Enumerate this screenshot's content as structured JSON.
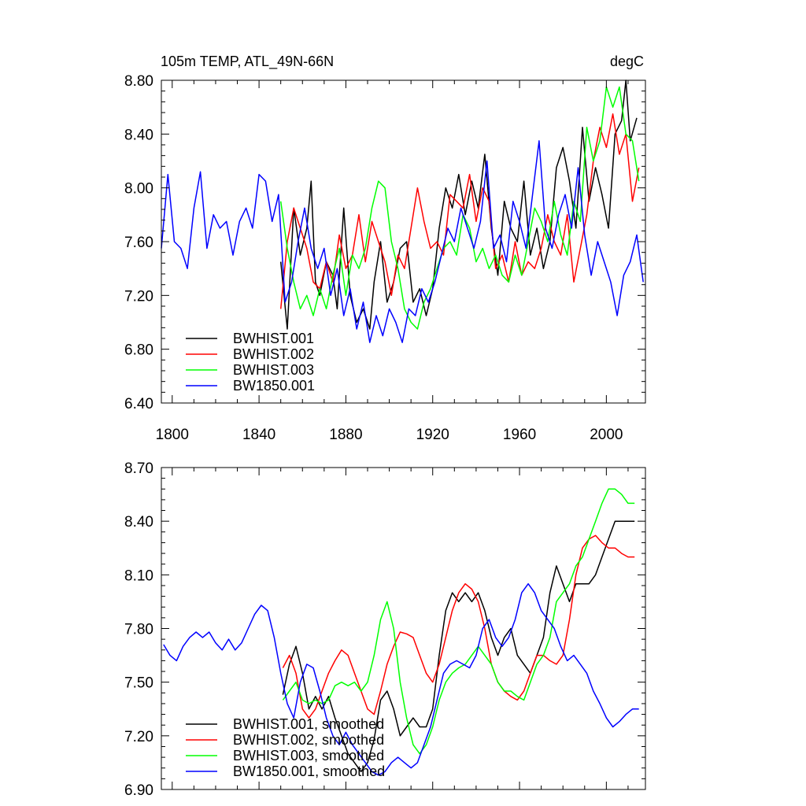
{
  "chart_data": [
    {
      "type": "line",
      "title": "105m TEMP, ATL_49N-66N",
      "units": "degC",
      "xlim": [
        1795,
        2018
      ],
      "ylim": [
        6.4,
        8.8
      ],
      "x_ticks": [
        1800,
        1840,
        1880,
        1920,
        1960,
        2000
      ],
      "y_ticks": [
        6.4,
        6.8,
        7.2,
        7.6,
        8.0,
        8.4,
        8.8
      ],
      "y_tick_labels": [
        "6.40",
        "6.80",
        "7.20",
        "7.60",
        "8.00",
        "8.40",
        "8.80"
      ],
      "x_tick_labels": [
        "1800",
        "1840",
        "1880",
        "1920",
        "1960",
        "2000"
      ],
      "legend_position": "bottom-left",
      "series": [
        {
          "name": "BWHIST.001",
          "color": "#000000",
          "x": [
            1850,
            1853,
            1856,
            1859,
            1862,
            1864,
            1866,
            1868,
            1871,
            1874,
            1876,
            1879,
            1882,
            1885,
            1888,
            1891,
            1893,
            1896,
            1899,
            1902,
            1905,
            1908,
            1911,
            1914,
            1917,
            1920,
            1923,
            1926,
            1929,
            1932,
            1935,
            1938,
            1941,
            1944,
            1947,
            1950,
            1953,
            1956,
            1959,
            1962,
            1965,
            1968,
            1971,
            1974,
            1977,
            1980,
            1983,
            1986,
            1989,
            1992,
            1995,
            1998,
            2001,
            2004,
            2007,
            2009,
            2011,
            2014
          ],
          "values": [
            7.45,
            6.95,
            7.85,
            7.5,
            7.7,
            8.05,
            7.3,
            7.2,
            7.45,
            7.35,
            7.1,
            7.85,
            7.2,
            7.0,
            7.1,
            6.95,
            7.3,
            7.6,
            7.15,
            7.3,
            7.55,
            7.6,
            7.15,
            7.25,
            7.05,
            7.25,
            7.7,
            8.0,
            7.85,
            8.1,
            7.8,
            8.05,
            7.85,
            8.25,
            7.7,
            7.35,
            7.9,
            7.7,
            7.6,
            8.05,
            7.5,
            7.7,
            7.4,
            7.6,
            8.15,
            8.3,
            8.05,
            7.7,
            8.45,
            7.9,
            8.15,
            7.95,
            7.7,
            8.4,
            8.5,
            8.8,
            8.35,
            8.52
          ]
        },
        {
          "name": "BWHIST.002",
          "color": "#ff0000",
          "x": [
            1850,
            1853,
            1856,
            1859,
            1862,
            1865,
            1868,
            1871,
            1874,
            1877,
            1880,
            1883,
            1886,
            1889,
            1892,
            1895,
            1898,
            1901,
            1904,
            1907,
            1910,
            1913,
            1916,
            1919,
            1922,
            1925,
            1928,
            1931,
            1934,
            1937,
            1940,
            1943,
            1946,
            1949,
            1952,
            1955,
            1958,
            1961,
            1964,
            1967,
            1970,
            1973,
            1976,
            1979,
            1982,
            1985,
            1988,
            1991,
            1994,
            1997,
            2000,
            2003,
            2006,
            2009,
            2012,
            2015
          ],
          "values": [
            7.1,
            7.6,
            7.85,
            7.7,
            7.55,
            7.3,
            7.25,
            7.45,
            7.3,
            7.65,
            7.4,
            7.5,
            7.8,
            7.45,
            7.75,
            7.6,
            7.45,
            7.2,
            7.5,
            7.4,
            7.7,
            8.0,
            7.75,
            7.55,
            7.6,
            7.5,
            7.95,
            7.9,
            7.85,
            8.1,
            7.75,
            8.0,
            7.9,
            7.4,
            7.5,
            7.3,
            7.6,
            7.35,
            7.45,
            7.4,
            7.55,
            7.8,
            7.6,
            7.5,
            7.8,
            7.3,
            7.55,
            7.8,
            8.2,
            8.45,
            8.3,
            8.55,
            8.25,
            8.4,
            7.9,
            8.15
          ]
        },
        {
          "name": "BWHIST.003",
          "color": "#00ff00",
          "x": [
            1850,
            1853,
            1856,
            1859,
            1862,
            1865,
            1868,
            1871,
            1874,
            1877,
            1880,
            1883,
            1886,
            1889,
            1892,
            1895,
            1898,
            1901,
            1904,
            1907,
            1910,
            1913,
            1916,
            1919,
            1922,
            1925,
            1928,
            1931,
            1934,
            1937,
            1940,
            1943,
            1946,
            1949,
            1952,
            1955,
            1958,
            1961,
            1964,
            1967,
            1970,
            1973,
            1976,
            1979,
            1982,
            1985,
            1988,
            1991,
            1994,
            1997,
            2000,
            2003,
            2006,
            2009,
            2012,
            2015
          ],
          "values": [
            7.9,
            7.55,
            7.3,
            7.1,
            7.2,
            7.05,
            7.25,
            7.1,
            7.35,
            7.55,
            7.2,
            7.5,
            7.4,
            7.55,
            7.85,
            8.05,
            8.0,
            7.6,
            7.4,
            7.1,
            7.0,
            6.95,
            7.15,
            7.25,
            7.4,
            7.55,
            7.6,
            7.5,
            7.8,
            7.7,
            7.45,
            7.55,
            7.4,
            7.5,
            7.35,
            7.3,
            7.5,
            7.35,
            7.6,
            7.85,
            7.75,
            7.6,
            7.9,
            7.65,
            7.5,
            7.9,
            7.75,
            8.45,
            8.2,
            8.35,
            8.75,
            8.6,
            8.75,
            8.4,
            8.35,
            8.05
          ]
        },
        {
          "name": "BW1850.001",
          "color": "#0000ff",
          "x": [
            1795,
            1798,
            1801,
            1804,
            1807,
            1810,
            1813,
            1816,
            1819,
            1822,
            1825,
            1828,
            1831,
            1834,
            1837,
            1840,
            1843,
            1846,
            1849,
            1852,
            1855,
            1858,
            1861,
            1864,
            1867,
            1870,
            1873,
            1876,
            1879,
            1882,
            1885,
            1888,
            1891,
            1894,
            1897,
            1900,
            1903,
            1906,
            1909,
            1912,
            1915,
            1918,
            1921,
            1924,
            1927,
            1930,
            1933,
            1936,
            1939,
            1942,
            1945,
            1948,
            1951,
            1954,
            1957,
            1960,
            1963,
            1966,
            1969,
            1972,
            1975,
            1978,
            1981,
            1984,
            1987,
            1990,
            1993,
            1996,
            1999,
            2002,
            2005,
            2008,
            2011,
            2014,
            2017
          ],
          "values": [
            7.55,
            8.1,
            7.6,
            7.55,
            7.4,
            7.85,
            8.12,
            7.55,
            7.8,
            7.7,
            7.75,
            7.5,
            7.75,
            7.85,
            7.7,
            8.1,
            8.05,
            7.75,
            7.95,
            7.15,
            7.3,
            7.6,
            7.85,
            7.55,
            7.4,
            7.55,
            7.2,
            7.4,
            7.05,
            7.25,
            6.95,
            7.15,
            6.85,
            7.05,
            6.9,
            7.1,
            7.0,
            6.85,
            7.1,
            7.05,
            7.25,
            7.15,
            7.3,
            7.5,
            7.7,
            7.6,
            7.85,
            7.7,
            7.55,
            7.75,
            8.2,
            7.55,
            7.65,
            7.45,
            7.9,
            7.75,
            7.55,
            7.95,
            8.35,
            7.7,
            7.55,
            7.8,
            7.95,
            7.7,
            8.15,
            7.65,
            7.35,
            7.6,
            7.45,
            7.3,
            7.05,
            7.35,
            7.45,
            7.65,
            7.3
          ]
        }
      ]
    },
    {
      "type": "line",
      "title": "",
      "xlim": [
        1795,
        2018
      ],
      "ylim": [
        6.9,
        8.7
      ],
      "x_ticks": [
        1800,
        1840,
        1880,
        1920,
        1960,
        2000
      ],
      "y_ticks": [
        6.9,
        7.2,
        7.5,
        7.8,
        8.1,
        8.4,
        8.7
      ],
      "y_tick_labels": [
        "6.90",
        "7.20",
        "7.50",
        "7.80",
        "8.10",
        "8.40",
        "8.70"
      ],
      "legend_position": "bottom-left",
      "series": [
        {
          "name": "BWHIST.001, smoothed",
          "color": "#000000",
          "x": [
            1851,
            1854,
            1857,
            1860,
            1863,
            1866,
            1869,
            1872,
            1875,
            1878,
            1881,
            1884,
            1887,
            1890,
            1893,
            1896,
            1899,
            1902,
            1905,
            1908,
            1911,
            1914,
            1917,
            1920,
            1923,
            1926,
            1929,
            1932,
            1935,
            1938,
            1941,
            1944,
            1947,
            1950,
            1953,
            1956,
            1959,
            1962,
            1965,
            1968,
            1971,
            1974,
            1977,
            1980,
            1983,
            1986,
            1989,
            1992,
            1995,
            1998,
            2001,
            2004,
            2007,
            2010,
            2013
          ],
          "values": [
            7.43,
            7.6,
            7.7,
            7.55,
            7.35,
            7.42,
            7.35,
            7.42,
            7.3,
            7.2,
            7.1,
            7.05,
            7.0,
            7.05,
            7.18,
            7.4,
            7.45,
            7.35,
            7.2,
            7.25,
            7.3,
            7.25,
            7.25,
            7.35,
            7.65,
            7.9,
            8.0,
            7.95,
            8.0,
            7.95,
            8.0,
            7.9,
            7.75,
            7.65,
            7.75,
            7.8,
            7.65,
            7.6,
            7.55,
            7.65,
            7.75,
            8.0,
            8.15,
            8.05,
            7.95,
            8.05,
            8.05,
            8.05,
            8.1,
            8.2,
            8.3,
            8.4,
            8.4,
            8.4,
            8.4
          ]
        },
        {
          "name": "BWHIST.002, smoothed",
          "color": "#ff0000",
          "x": [
            1851,
            1854,
            1857,
            1860,
            1863,
            1866,
            1869,
            1872,
            1875,
            1878,
            1881,
            1884,
            1887,
            1890,
            1893,
            1896,
            1899,
            1902,
            1905,
            1908,
            1911,
            1914,
            1917,
            1920,
            1923,
            1926,
            1929,
            1932,
            1935,
            1938,
            1941,
            1944,
            1947,
            1950,
            1953,
            1956,
            1959,
            1962,
            1965,
            1968,
            1971,
            1974,
            1977,
            1980,
            1983,
            1986,
            1989,
            1992,
            1995,
            1998,
            2001,
            2004,
            2007,
            2010,
            2013
          ],
          "values": [
            7.58,
            7.65,
            7.55,
            7.35,
            7.3,
            7.35,
            7.45,
            7.55,
            7.62,
            7.68,
            7.65,
            7.55,
            7.45,
            7.35,
            7.32,
            7.45,
            7.6,
            7.7,
            7.78,
            7.77,
            7.75,
            7.65,
            7.55,
            7.5,
            7.6,
            7.75,
            7.9,
            8.0,
            8.05,
            8.02,
            7.95,
            7.8,
            7.6,
            7.5,
            7.45,
            7.42,
            7.4,
            7.45,
            7.55,
            7.65,
            7.65,
            7.62,
            7.6,
            7.65,
            7.85,
            8.1,
            8.25,
            8.3,
            8.32,
            8.28,
            8.25,
            8.25,
            8.22,
            8.2,
            8.2
          ]
        },
        {
          "name": "BWHIST.003, smoothed",
          "color": "#00ff00",
          "x": [
            1851,
            1854,
            1857,
            1860,
            1863,
            1866,
            1869,
            1872,
            1875,
            1878,
            1881,
            1884,
            1887,
            1890,
            1893,
            1896,
            1899,
            1902,
            1905,
            1908,
            1911,
            1914,
            1917,
            1920,
            1923,
            1926,
            1929,
            1932,
            1935,
            1938,
            1941,
            1944,
            1947,
            1950,
            1953,
            1956,
            1959,
            1962,
            1965,
            1968,
            1971,
            1974,
            1977,
            1980,
            1983,
            1986,
            1989,
            1992,
            1995,
            1998,
            2001,
            2004,
            2007,
            2010,
            2013
          ],
          "values": [
            7.4,
            7.45,
            7.5,
            7.4,
            7.38,
            7.4,
            7.38,
            7.4,
            7.48,
            7.5,
            7.48,
            7.5,
            7.45,
            7.5,
            7.65,
            7.85,
            7.95,
            7.8,
            7.5,
            7.3,
            7.15,
            7.1,
            7.15,
            7.25,
            7.4,
            7.5,
            7.55,
            7.58,
            7.6,
            7.65,
            7.7,
            7.65,
            7.6,
            7.5,
            7.45,
            7.45,
            7.42,
            7.4,
            7.5,
            7.6,
            7.65,
            7.75,
            7.95,
            8.0,
            8.05,
            8.15,
            8.2,
            8.3,
            8.4,
            8.5,
            8.58,
            8.58,
            8.55,
            8.5,
            8.5
          ]
        },
        {
          "name": "BW1850.001, smoothed",
          "color": "#0000ff",
          "x": [
            1796,
            1799,
            1802,
            1805,
            1808,
            1811,
            1814,
            1817,
            1820,
            1823,
            1826,
            1829,
            1832,
            1835,
            1838,
            1841,
            1844,
            1847,
            1850,
            1853,
            1856,
            1859,
            1862,
            1865,
            1868,
            1871,
            1874,
            1877,
            1880,
            1883,
            1886,
            1889,
            1892,
            1895,
            1898,
            1901,
            1904,
            1907,
            1910,
            1913,
            1916,
            1919,
            1922,
            1925,
            1928,
            1931,
            1934,
            1937,
            1940,
            1943,
            1946,
            1949,
            1952,
            1955,
            1958,
            1961,
            1964,
            1967,
            1970,
            1973,
            1976,
            1979,
            1982,
            1985,
            1988,
            1991,
            1994,
            1997,
            2000,
            2003,
            2006,
            2009,
            2012,
            2015
          ],
          "values": [
            7.71,
            7.65,
            7.62,
            7.7,
            7.75,
            7.78,
            7.75,
            7.78,
            7.72,
            7.68,
            7.74,
            7.68,
            7.72,
            7.8,
            7.88,
            7.93,
            7.9,
            7.75,
            7.55,
            7.38,
            7.3,
            7.5,
            7.6,
            7.58,
            7.45,
            7.3,
            7.2,
            7.15,
            7.22,
            7.15,
            7.1,
            7.05,
            7.0,
            6.98,
            7.0,
            7.05,
            7.08,
            7.05,
            7.02,
            7.05,
            7.15,
            7.25,
            7.4,
            7.55,
            7.6,
            7.62,
            7.6,
            7.58,
            7.65,
            7.8,
            7.85,
            7.75,
            7.7,
            7.75,
            7.85,
            8.0,
            8.05,
            8.0,
            7.9,
            7.85,
            7.8,
            7.7,
            7.62,
            7.65,
            7.6,
            7.55,
            7.45,
            7.38,
            7.3,
            7.25,
            7.28,
            7.32,
            7.35,
            7.35
          ]
        }
      ]
    }
  ]
}
